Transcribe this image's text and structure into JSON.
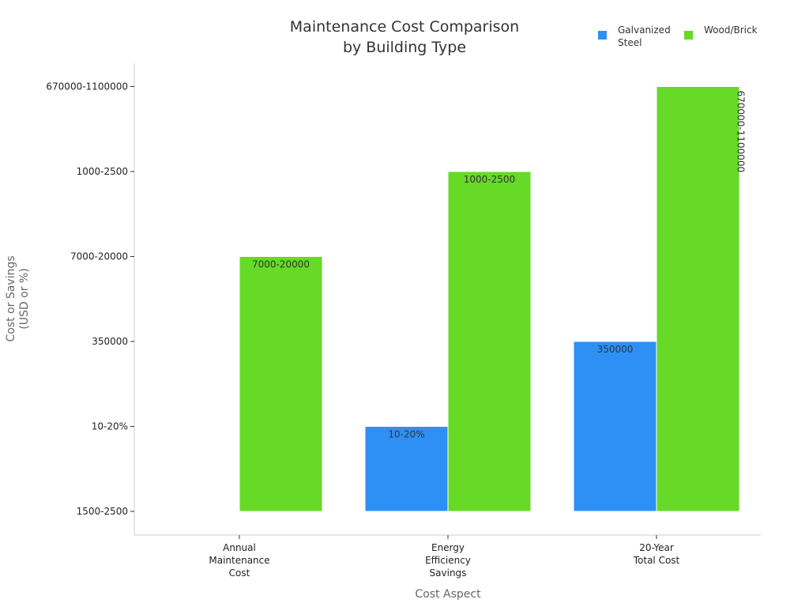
{
  "chart_data": {
    "type": "bar",
    "title": [
      "Maintenance Cost Comparison",
      "by Building Type"
    ],
    "xlabel": "Cost Aspect",
    "ylabel": [
      "Cost or Savings",
      "(USD or %)"
    ],
    "categories": [
      [
        "Annual",
        "Maintenance",
        "Cost"
      ],
      [
        "Energy",
        "Efficiency",
        "Savings"
      ],
      [
        "20-Year",
        "Total Cost"
      ]
    ],
    "y_ticks": [
      "1500-2500",
      "10-20%",
      "350000",
      "7000-20000",
      "1000-2500",
      "670000-1100000"
    ],
    "legend_position": "top-right",
    "grid": false,
    "series": [
      {
        "name": [
          "Galvanized",
          "Steel"
        ],
        "color": "#2e90f5",
        "values": [
          null,
          "10-20%",
          "350000"
        ],
        "labels": [
          "",
          "10-20%",
          "350000"
        ]
      },
      {
        "name": [
          "Wood/Brick"
        ],
        "color": "#66da26",
        "values": [
          "7000-20000",
          "1000-2500",
          "670000-1100000"
        ],
        "labels": [
          "7000-20000",
          "1000-2500",
          "670000-1100000"
        ],
        "label_rotated": [
          false,
          false,
          true
        ]
      }
    ]
  }
}
